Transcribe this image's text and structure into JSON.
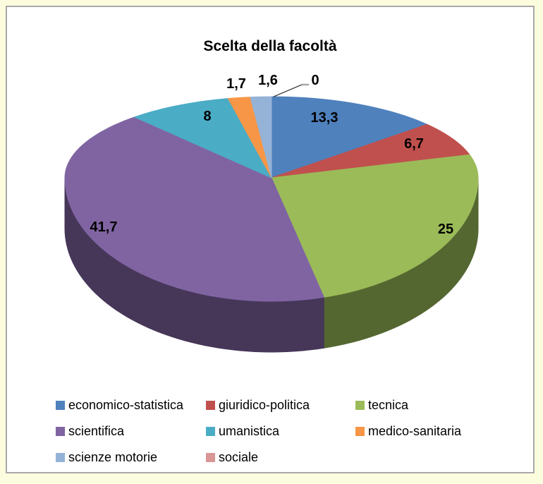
{
  "frame": {
    "outer_background": "#FCFCDE",
    "panel_background": "#FFFFFF",
    "panel_border_color": "#A9A9A9"
  },
  "chart_data": {
    "type": "pie",
    "title": "Scelta della facoltà",
    "is_3d": true,
    "start_angle_deg": 0,
    "direction": "clockwise",
    "legend_position": "bottom",
    "label_color": "#000000",
    "leader_line_colors": [
      "#3F3F3F",
      "#A6A6A6"
    ],
    "series": [
      {
        "label": "economico-statistica",
        "value": 13.3,
        "display": "13,3",
        "color": "#4F81BD"
      },
      {
        "label": "giuridico-politica",
        "value": 6.7,
        "display": "6,7",
        "color": "#C0504D"
      },
      {
        "label": "tecnica",
        "value": 25,
        "display": "25",
        "color": "#9BBB59"
      },
      {
        "label": "scientifica",
        "value": 41.7,
        "display": "41,7",
        "color": "#8064A2"
      },
      {
        "label": "umanistica",
        "value": 8,
        "display": "8",
        "color": "#4BACC6"
      },
      {
        "label": "medico-sanitaria",
        "value": 1.7,
        "display": "1,7",
        "color": "#F79646"
      },
      {
        "label": "scienze motorie",
        "value": 1.6,
        "display": "1,6",
        "color": "#95B3D7"
      },
      {
        "label": "sociale",
        "value": 0,
        "display": "0",
        "color": "#D99694"
      }
    ]
  }
}
